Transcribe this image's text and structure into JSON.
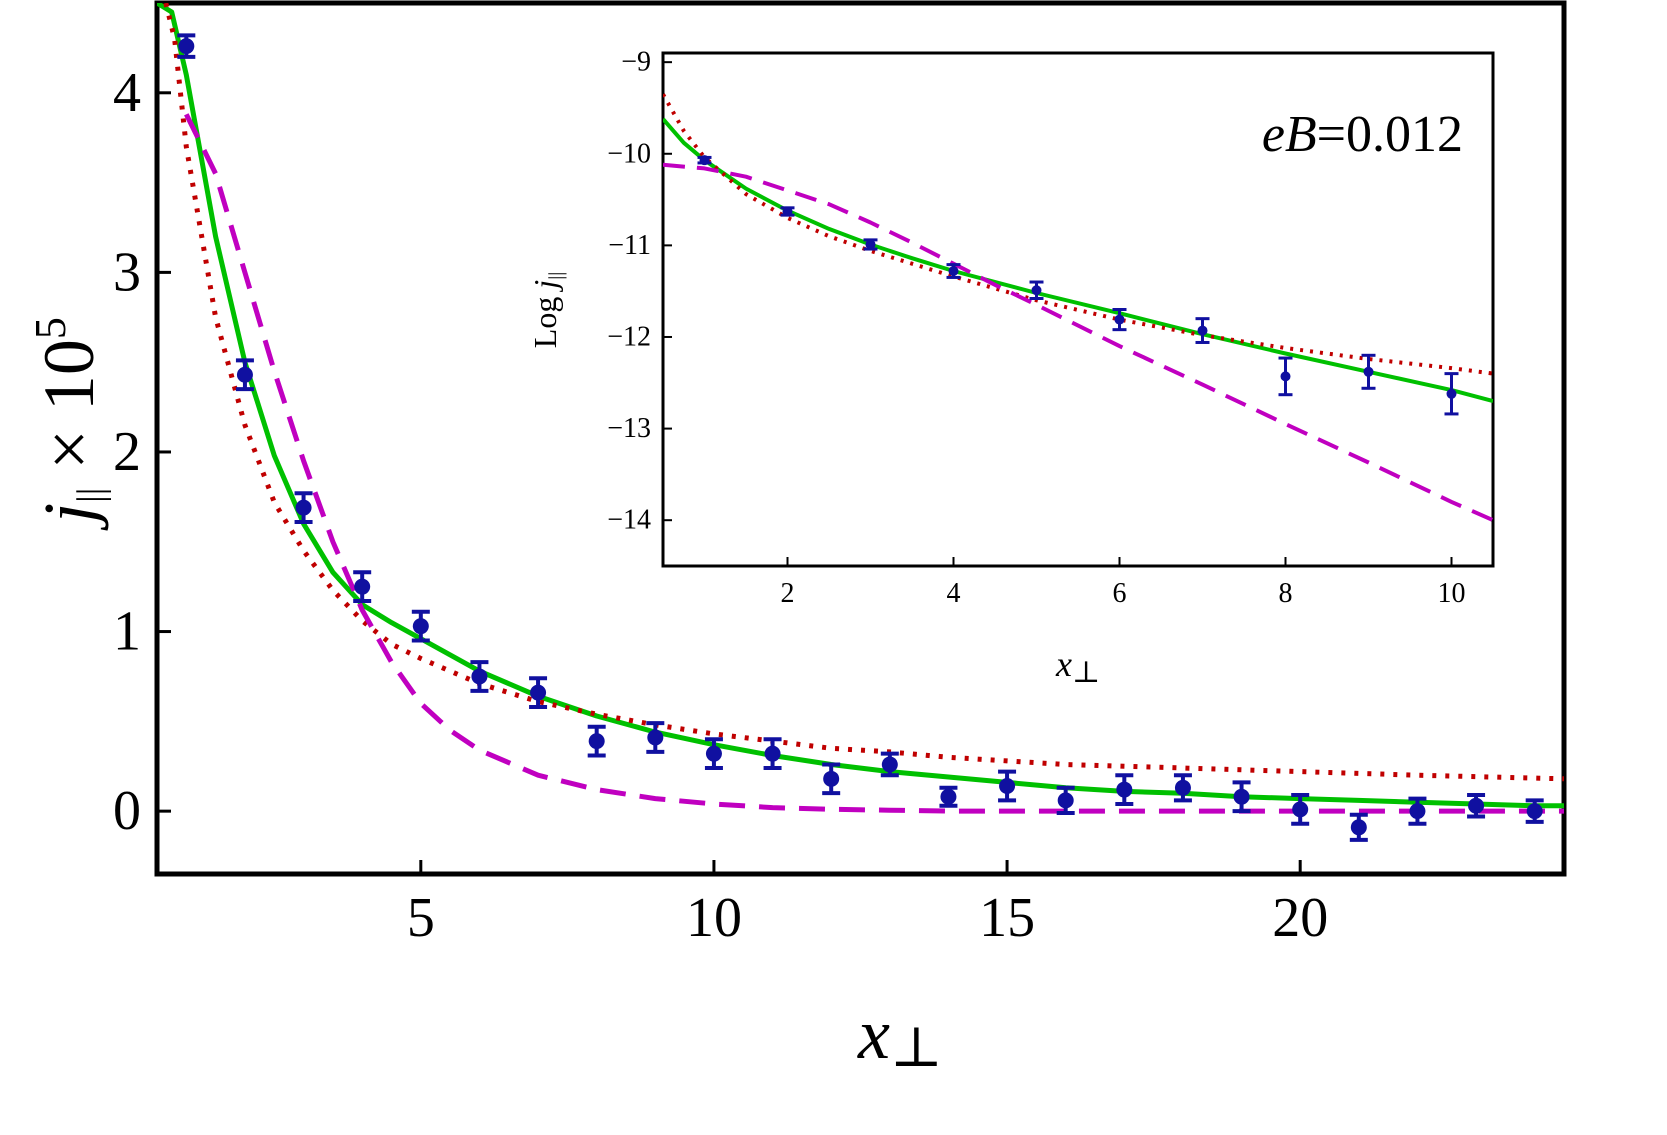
{
  "chart_data": [
    {
      "type": "scatter",
      "xlabel": "x⊥",
      "ylabel": "j|| × 10^5",
      "xlim": [
        0.5,
        24.5
      ],
      "ylim": [
        -0.35,
        4.5
      ],
      "xticks": [
        5,
        10,
        15,
        20
      ],
      "yticks": [
        0,
        1,
        2,
        3,
        4
      ],
      "grid": false,
      "series": [
        {
          "style": "points-with-errorbars",
          "color": "#1010a0",
          "points": [
            {
              "x": 1,
              "y": 4.26,
              "err": 0.06
            },
            {
              "x": 2,
              "y": 2.43,
              "err": 0.08
            },
            {
              "x": 3,
              "y": 1.69,
              "err": 0.08
            },
            {
              "x": 4,
              "y": 1.25,
              "err": 0.08
            },
            {
              "x": 5,
              "y": 1.03,
              "err": 0.08
            },
            {
              "x": 6,
              "y": 0.75,
              "err": 0.08
            },
            {
              "x": 7,
              "y": 0.66,
              "err": 0.08
            },
            {
              "x": 8,
              "y": 0.39,
              "err": 0.08
            },
            {
              "x": 9,
              "y": 0.41,
              "err": 0.08
            },
            {
              "x": 10,
              "y": 0.32,
              "err": 0.08
            },
            {
              "x": 11,
              "y": 0.32,
              "err": 0.08
            },
            {
              "x": 12,
              "y": 0.18,
              "err": 0.08
            },
            {
              "x": 13,
              "y": 0.26,
              "err": 0.06
            },
            {
              "x": 14,
              "y": 0.08,
              "err": 0.05
            },
            {
              "x": 15,
              "y": 0.14,
              "err": 0.08
            },
            {
              "x": 16,
              "y": 0.06,
              "err": 0.07
            },
            {
              "x": 17,
              "y": 0.12,
              "err": 0.08
            },
            {
              "x": 18,
              "y": 0.13,
              "err": 0.07
            },
            {
              "x": 19,
              "y": 0.08,
              "err": 0.08
            },
            {
              "x": 20,
              "y": 0.01,
              "err": 0.08
            },
            {
              "x": 21,
              "y": -0.09,
              "err": 0.07
            },
            {
              "x": 22,
              "y": 0.0,
              "err": 0.07
            },
            {
              "x": 23,
              "y": 0.03,
              "err": 0.06
            },
            {
              "x": 24,
              "y": 0.0,
              "err": 0.06
            }
          ]
        },
        {
          "style": "solid",
          "color": "#00c000",
          "points": [
            [
              0.5,
              4.5
            ],
            [
              0.75,
              4.45
            ],
            [
              1,
              4.1
            ],
            [
              1.5,
              3.2
            ],
            [
              2,
              2.5
            ],
            [
              2.5,
              1.98
            ],
            [
              3,
              1.6
            ],
            [
              3.5,
              1.33
            ],
            [
              4,
              1.15
            ],
            [
              4.5,
              1.05
            ],
            [
              5,
              0.96
            ],
            [
              6,
              0.78
            ],
            [
              7,
              0.64
            ],
            [
              8,
              0.53
            ],
            [
              9,
              0.44
            ],
            [
              10,
              0.37
            ],
            [
              11,
              0.31
            ],
            [
              12,
              0.26
            ],
            [
              13,
              0.22
            ],
            [
              14,
              0.19
            ],
            [
              15,
              0.16
            ],
            [
              16,
              0.13
            ],
            [
              17,
              0.11
            ],
            [
              18,
              0.1
            ],
            [
              19,
              0.08
            ],
            [
              20,
              0.07
            ],
            [
              21,
              0.06
            ],
            [
              22,
              0.05
            ],
            [
              23,
              0.04
            ],
            [
              24,
              0.03
            ],
            [
              24.5,
              0.03
            ]
          ]
        },
        {
          "style": "dotted",
          "color": "#c00000",
          "points": [
            [
              0.65,
              4.5
            ],
            [
              0.8,
              4.3
            ],
            [
              1,
              3.7
            ],
            [
              1.5,
              2.75
            ],
            [
              2,
              2.15
            ],
            [
              2.5,
              1.72
            ],
            [
              3,
              1.45
            ],
            [
              3.5,
              1.23
            ],
            [
              4,
              1.06
            ],
            [
              4.5,
              0.93
            ],
            [
              5,
              0.85
            ],
            [
              6,
              0.71
            ],
            [
              7,
              0.61
            ],
            [
              8,
              0.54
            ],
            [
              9,
              0.48
            ],
            [
              10,
              0.43
            ],
            [
              11,
              0.39
            ],
            [
              12,
              0.35
            ],
            [
              13,
              0.33
            ],
            [
              14,
              0.3
            ],
            [
              15,
              0.28
            ],
            [
              16,
              0.26
            ],
            [
              17,
              0.25
            ],
            [
              18,
              0.24
            ],
            [
              19,
              0.23
            ],
            [
              20,
              0.22
            ],
            [
              22,
              0.2
            ],
            [
              24.5,
              0.18
            ]
          ]
        },
        {
          "style": "dashed",
          "color": "#c000c0",
          "points": [
            [
              1,
              3.88
            ],
            [
              1.5,
              3.55
            ],
            [
              2,
              3.0
            ],
            [
              2.5,
              2.45
            ],
            [
              3,
              1.95
            ],
            [
              3.5,
              1.5
            ],
            [
              4,
              1.12
            ],
            [
              4.5,
              0.83
            ],
            [
              5,
              0.6
            ],
            [
              5.5,
              0.45
            ],
            [
              6,
              0.34
            ],
            [
              7,
              0.2
            ],
            [
              8,
              0.12
            ],
            [
              9,
              0.07
            ],
            [
              10,
              0.04
            ],
            [
              11,
              0.02
            ],
            [
              12,
              0.01
            ],
            [
              13,
              0.005
            ],
            [
              14,
              0.0
            ],
            [
              16,
              0.0
            ],
            [
              18,
              0.0
            ],
            [
              20,
              0.0
            ],
            [
              22,
              0.0
            ],
            [
              24.5,
              0.0
            ]
          ]
        }
      ]
    },
    {
      "type": "scatter",
      "annotation": "eB=0.012",
      "xlabel": "x⊥",
      "ylabel": "Log j||",
      "xlim": [
        0.5,
        10.5
      ],
      "ylim": [
        -14.5,
        -8.9
      ],
      "xticks": [
        2,
        4,
        6,
        8,
        10
      ],
      "yticks": [
        -9,
        -10,
        -11,
        -12,
        -13,
        -14
      ],
      "grid": false,
      "series": [
        {
          "style": "points-with-errorbars",
          "color": "#1010a0",
          "points": [
            {
              "x": 1,
              "y": -10.07,
              "err": 0.03
            },
            {
              "x": 2,
              "y": -10.63,
              "err": 0.04
            },
            {
              "x": 3,
              "y": -10.99,
              "err": 0.05
            },
            {
              "x": 4,
              "y": -11.28,
              "err": 0.07
            },
            {
              "x": 5,
              "y": -11.49,
              "err": 0.09
            },
            {
              "x": 6,
              "y": -11.81,
              "err": 0.11
            },
            {
              "x": 7,
              "y": -11.93,
              "err": 0.13
            },
            {
              "x": 8,
              "y": -12.43,
              "err": 0.2
            },
            {
              "x": 9,
              "y": -12.38,
              "err": 0.18
            },
            {
              "x": 10,
              "y": -12.62,
              "err": 0.22
            }
          ]
        },
        {
          "style": "solid",
          "color": "#00c000",
          "points": [
            [
              0.5,
              -9.62
            ],
            [
              0.75,
              -9.88
            ],
            [
              1,
              -10.07
            ],
            [
              1.5,
              -10.38
            ],
            [
              2,
              -10.62
            ],
            [
              2.5,
              -10.82
            ],
            [
              3,
              -10.99
            ],
            [
              3.5,
              -11.14
            ],
            [
              4,
              -11.28
            ],
            [
              5,
              -11.52
            ],
            [
              6,
              -11.74
            ],
            [
              7,
              -11.97
            ],
            [
              8,
              -12.18
            ],
            [
              9,
              -12.38
            ],
            [
              10,
              -12.58
            ],
            [
              10.5,
              -12.7
            ]
          ]
        },
        {
          "style": "dotted",
          "color": "#c00000",
          "points": [
            [
              0.5,
              -9.35
            ],
            [
              0.75,
              -9.75
            ],
            [
              1,
              -10.04
            ],
            [
              1.5,
              -10.44
            ],
            [
              2,
              -10.7
            ],
            [
              2.5,
              -10.9
            ],
            [
              3,
              -11.06
            ],
            [
              3.5,
              -11.2
            ],
            [
              4,
              -11.34
            ],
            [
              5,
              -11.6
            ],
            [
              6,
              -11.81
            ],
            [
              7,
              -11.98
            ],
            [
              8,
              -12.12
            ],
            [
              9,
              -12.24
            ],
            [
              10,
              -12.34
            ],
            [
              10.5,
              -12.4
            ]
          ]
        },
        {
          "style": "dashed",
          "color": "#c000c0",
          "points": [
            [
              0.5,
              -10.12
            ],
            [
              1,
              -10.16
            ],
            [
              1.5,
              -10.25
            ],
            [
              2,
              -10.4
            ],
            [
              2.5,
              -10.55
            ],
            [
              3,
              -10.75
            ],
            [
              3.5,
              -10.97
            ],
            [
              4,
              -11.2
            ],
            [
              4.5,
              -11.43
            ],
            [
              5,
              -11.65
            ],
            [
              6,
              -12.1
            ],
            [
              7,
              -12.52
            ],
            [
              8,
              -12.95
            ],
            [
              9,
              -13.37
            ],
            [
              10,
              -13.8
            ],
            [
              10.5,
              -14.0
            ]
          ]
        }
      ]
    }
  ]
}
